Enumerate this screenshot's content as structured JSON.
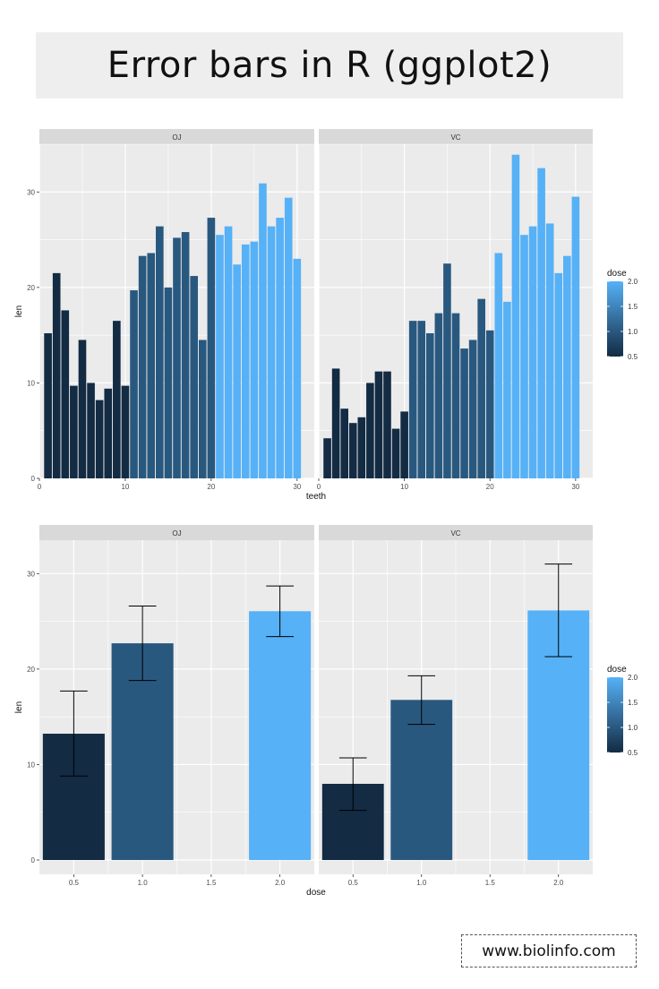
{
  "page": {
    "title": "Error bars in R (ggplot2)",
    "footer_url": "www.biolinfo.com"
  },
  "colors": {
    "panel_bg": "#ebebeb",
    "strip_bg": "#d9d9d9",
    "gridline": "#ffffff",
    "dose_low": "#132b43",
    "dose_high": "#56b1f7",
    "errorbar": "#000000"
  },
  "chart_data": [
    {
      "type": "bar",
      "facet_variable": "supp",
      "xlabel": "teeth",
      "ylabel": "len",
      "xlim": [
        0,
        32
      ],
      "ylim": [
        0,
        35
      ],
      "x_ticks": [
        0,
        10,
        20,
        30
      ],
      "y_ticks": [
        0,
        10,
        20,
        30
      ],
      "legend": {
        "title": "dose",
        "ticks": [
          "2.0",
          "1.5",
          "1.0",
          "0.5"
        ],
        "range": [
          0.5,
          2.0
        ],
        "position": "right"
      },
      "panels": [
        {
          "label": "OJ",
          "x": [
            1,
            2,
            3,
            4,
            5,
            6,
            7,
            8,
            9,
            10,
            11,
            12,
            13,
            14,
            15,
            16,
            17,
            18,
            19,
            20,
            21,
            22,
            23,
            24,
            25,
            26,
            27,
            28,
            29,
            30
          ],
          "values": [
            15.2,
            21.5,
            17.6,
            9.7,
            14.5,
            10.0,
            8.2,
            9.4,
            16.5,
            9.7,
            19.7,
            23.3,
            23.6,
            26.4,
            20.0,
            25.2,
            25.8,
            21.2,
            14.5,
            27.3,
            25.5,
            26.4,
            22.4,
            24.5,
            24.8,
            30.9,
            26.4,
            27.3,
            29.4,
            23.0
          ],
          "dose": [
            0.5,
            0.5,
            0.5,
            0.5,
            0.5,
            0.5,
            0.5,
            0.5,
            0.5,
            0.5,
            1.0,
            1.0,
            1.0,
            1.0,
            1.0,
            1.0,
            1.0,
            1.0,
            1.0,
            1.0,
            2.0,
            2.0,
            2.0,
            2.0,
            2.0,
            2.0,
            2.0,
            2.0,
            2.0,
            2.0
          ]
        },
        {
          "label": "VC",
          "x": [
            1,
            2,
            3,
            4,
            5,
            6,
            7,
            8,
            9,
            10,
            11,
            12,
            13,
            14,
            15,
            16,
            17,
            18,
            19,
            20,
            21,
            22,
            23,
            24,
            25,
            26,
            27,
            28,
            29,
            30
          ],
          "values": [
            4.2,
            11.5,
            7.3,
            5.8,
            6.4,
            10.0,
            11.2,
            11.2,
            5.2,
            7.0,
            16.5,
            16.5,
            15.2,
            17.3,
            22.5,
            17.3,
            13.6,
            14.5,
            18.8,
            15.5,
            23.6,
            18.5,
            33.9,
            25.5,
            26.4,
            32.5,
            26.7,
            21.5,
            23.3,
            29.5
          ],
          "dose": [
            0.5,
            0.5,
            0.5,
            0.5,
            0.5,
            0.5,
            0.5,
            0.5,
            0.5,
            0.5,
            1.0,
            1.0,
            1.0,
            1.0,
            1.0,
            1.0,
            1.0,
            1.0,
            1.0,
            1.0,
            2.0,
            2.0,
            2.0,
            2.0,
            2.0,
            2.0,
            2.0,
            2.0,
            2.0,
            2.0
          ]
        }
      ],
      "grid": true
    },
    {
      "type": "bar",
      "facet_variable": "supp",
      "xlabel": "dose",
      "ylabel": "len",
      "xlim": [
        0.25,
        2.25
      ],
      "ylim": [
        -1.5,
        33.5
      ],
      "x_ticks": [
        "0.5",
        "1.0",
        "1.5",
        "2.0"
      ],
      "y_ticks": [
        0,
        10,
        20,
        30
      ],
      "legend": {
        "title": "dose",
        "ticks": [
          "2.0",
          "1.5",
          "1.0",
          "0.5"
        ],
        "range": [
          0.5,
          2.0
        ],
        "position": "right"
      },
      "panels": [
        {
          "label": "OJ",
          "x": [
            0.5,
            1.0,
            2.0
          ],
          "values": [
            13.23,
            22.7,
            26.06
          ],
          "error_low": [
            8.8,
            18.8,
            23.4
          ],
          "error_high": [
            17.7,
            26.6,
            28.7
          ]
        },
        {
          "label": "VC",
          "x": [
            0.5,
            1.0,
            2.0
          ],
          "values": [
            7.98,
            16.77,
            26.14
          ],
          "error_low": [
            5.2,
            14.2,
            21.3
          ],
          "error_high": [
            10.7,
            19.3,
            31.0
          ]
        }
      ],
      "grid": true
    }
  ]
}
